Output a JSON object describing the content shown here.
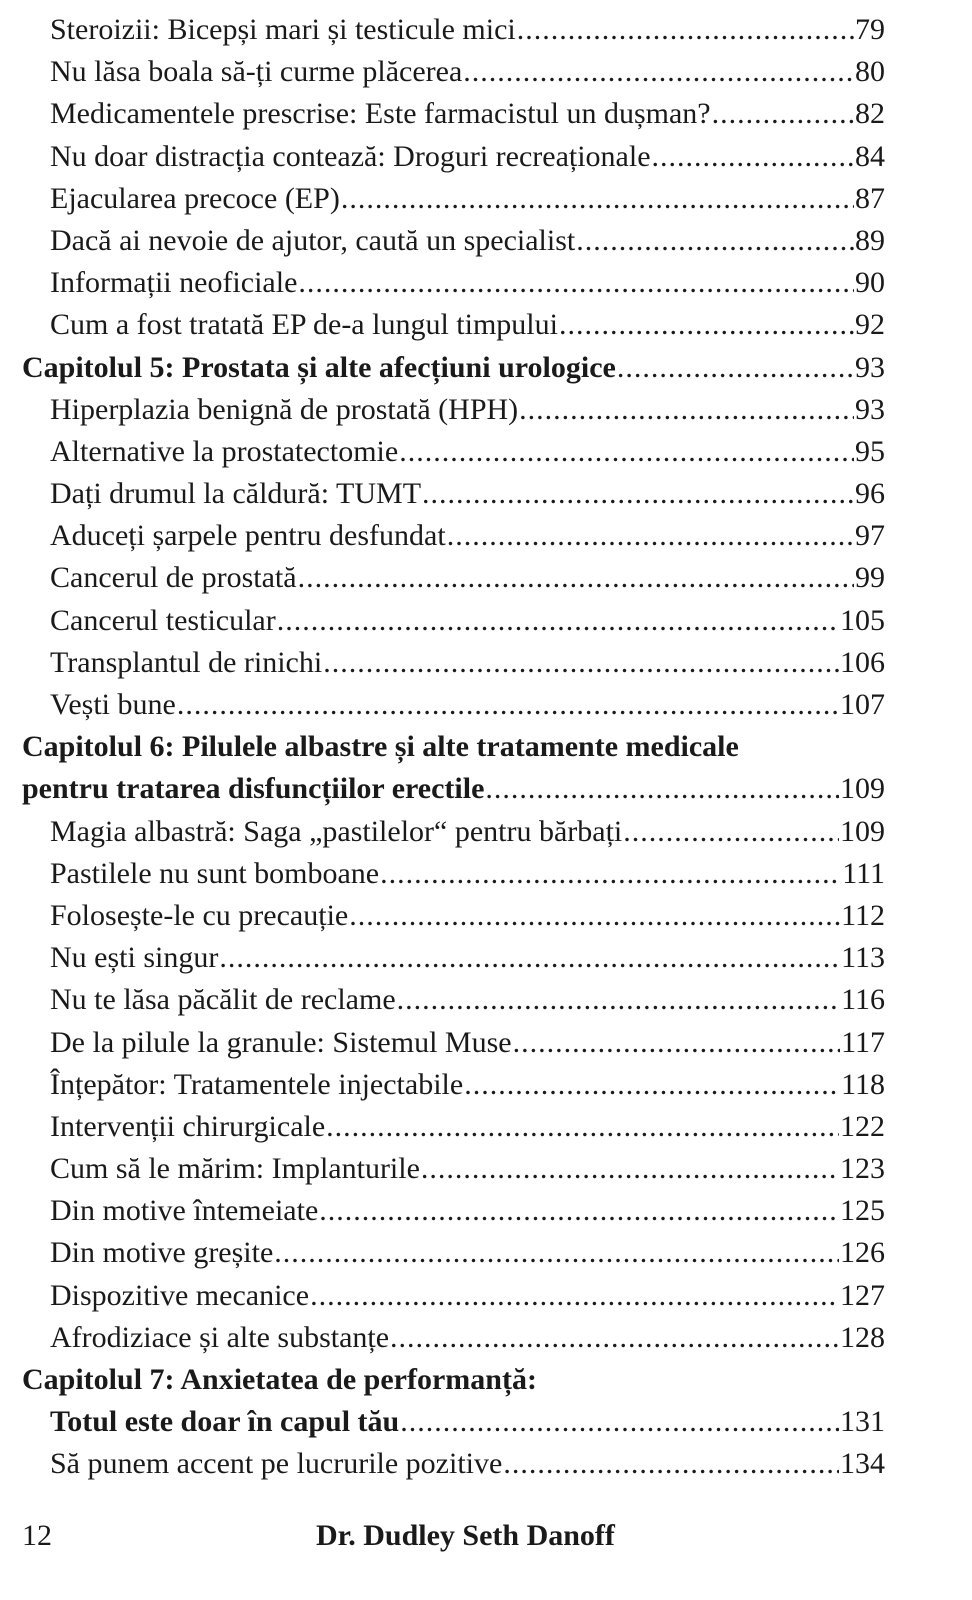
{
  "entries": [
    {
      "text": "Steroizii: Bicepși mari și testicule mici",
      "page": "79",
      "level": "section"
    },
    {
      "text": "Nu lăsa boala să-ți curme plăcerea",
      "page": "80",
      "level": "section"
    },
    {
      "text": "Medicamentele prescrise: Este farmacistul un dușman?",
      "page": "82",
      "level": "section"
    },
    {
      "text": "Nu doar distracția contează: Droguri recreaționale",
      "page": "84",
      "level": "section"
    },
    {
      "text": "Ejacularea precoce (EP)",
      "page": "87",
      "level": "section"
    },
    {
      "text": "Dacă ai nevoie de ajutor, caută un specialist",
      "page": "89",
      "level": "section"
    },
    {
      "text": "Informații neoficiale",
      "page": "90",
      "level": "section"
    },
    {
      "text": "Cum a fost tratată EP de-a lungul timpului",
      "page": "92",
      "level": "section"
    },
    {
      "text": "Capitolul 5: Prostata și alte afecțiuni urologice",
      "page": "93",
      "level": "chapter"
    },
    {
      "text": "Hiperplazia benignă de prostată (HPH)",
      "page": "93",
      "level": "section"
    },
    {
      "text": "Alternative la prostatectomie",
      "page": "95",
      "level": "section"
    },
    {
      "text": "Dați drumul la căldură: TUMT",
      "page": "96",
      "level": "section"
    },
    {
      "text": "Aduceți șarpele pentru desfundat",
      "page": "97",
      "level": "section"
    },
    {
      "text": "Cancerul de prostată",
      "page": "99",
      "level": "section"
    },
    {
      "text": "Cancerul testicular",
      "page": "105",
      "level": "section"
    },
    {
      "text": "Transplantul de rinichi",
      "page": "106",
      "level": "section"
    },
    {
      "text": "Vești bune",
      "page": "107",
      "level": "section"
    },
    {
      "text": "Capitolul 6: Pilulele albastre și alte tratamente medicale",
      "page": "",
      "level": "chapter"
    },
    {
      "text": "pentru tratarea disfuncțiilor erectile",
      "page": "109",
      "level": "chapter"
    },
    {
      "text": "Magia albastră: Saga „pastilelor“ pentru bărbați",
      "page": "109",
      "level": "section"
    },
    {
      "text": "Pastilele nu sunt bomboane",
      "page": "111",
      "level": "section"
    },
    {
      "text": "Folosește-le cu precauție",
      "page": "112",
      "level": "section"
    },
    {
      "text": "Nu ești singur",
      "page": "113",
      "level": "section"
    },
    {
      "text": "Nu te lăsa păcălit de reclame",
      "page": "116",
      "level": "section"
    },
    {
      "text": "De la pilule la granule: Sistemul Muse",
      "page": "117",
      "level": "section"
    },
    {
      "text": "Înțepător: Tratamentele injectabile",
      "page": "118",
      "level": "section"
    },
    {
      "text": "Intervenții chirurgicale",
      "page": "122",
      "level": "section"
    },
    {
      "text": "Cum să le mărim: Implanturile",
      "page": "123",
      "level": "section"
    },
    {
      "text": "Din motive întemeiate",
      "page": "125",
      "level": "section"
    },
    {
      "text": "Din motive greșite",
      "page": "126",
      "level": "section"
    },
    {
      "text": "Dispozitive mecanice",
      "page": "127",
      "level": "section"
    },
    {
      "text": "Afrodiziace și alte substanțe",
      "page": "128",
      "level": "section"
    },
    {
      "text": "Capitolul 7: Anxietatea de performanță:",
      "page": "",
      "level": "chapter"
    },
    {
      "text": "Totul este doar în capul tău",
      "page": "131",
      "level": "chapter indent"
    },
    {
      "text": "Să punem accent pe lucrurile pozitive",
      "page": "134",
      "level": "section"
    }
  ],
  "footer": {
    "page_number": "12",
    "author": "Dr. Dudley Seth Danoff"
  }
}
